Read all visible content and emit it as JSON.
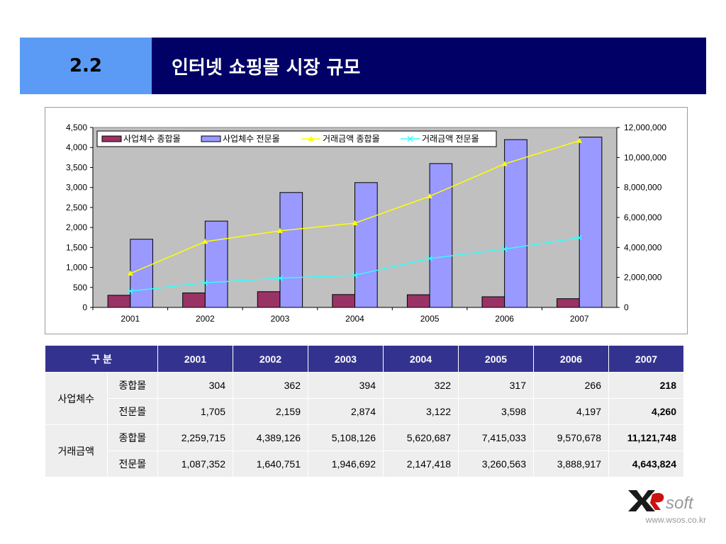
{
  "header": {
    "number": "2.2",
    "title": "인터넷 쇼핑몰 시장 규모"
  },
  "chart_data": {
    "type": "bar",
    "categories": [
      "2001",
      "2002",
      "2003",
      "2004",
      "2005",
      "2006",
      "2007"
    ],
    "series": [
      {
        "name": "사업체수 종합몰",
        "type": "bar",
        "axis": "left",
        "color": "#993366",
        "values": [
          304,
          362,
          394,
          322,
          317,
          266,
          218
        ]
      },
      {
        "name": "사업체수 전문몰",
        "type": "bar",
        "axis": "left",
        "color": "#9999ff",
        "values": [
          1705,
          2159,
          2874,
          3122,
          3598,
          4197,
          4260
        ]
      },
      {
        "name": "거래금액 종합몰",
        "type": "line",
        "axis": "right",
        "color": "#ffff00",
        "marker": "triangle",
        "values": [
          2259715,
          4389126,
          5108126,
          5620687,
          7415033,
          9570678,
          11121748
        ]
      },
      {
        "name": "거래금액 전문몰",
        "type": "line",
        "axis": "right",
        "color": "#33ffff",
        "marker": "x",
        "values": [
          1087352,
          1640751,
          1946692,
          2147418,
          3260563,
          3888917,
          4643824
        ]
      }
    ],
    "y_left": {
      "range": [
        0,
        4500
      ],
      "ticks": [
        "4,500",
        "4,000",
        "3,500",
        "3,000",
        "2,500",
        "2,000",
        "1,500",
        "1,000",
        "500",
        "0"
      ]
    },
    "y_right": {
      "range": [
        0,
        12000000
      ],
      "ticks": [
        "12,000,000",
        "10,000,000",
        "8,000,000",
        "6,000,000",
        "4,000,000",
        "2,000,000",
        "0"
      ]
    },
    "plot_background": "#c0c0c0",
    "legend_position": "top"
  },
  "table": {
    "corner": "구 분",
    "years": [
      "2001",
      "2002",
      "2003",
      "2004",
      "2005",
      "2006",
      "2007"
    ],
    "groups": [
      {
        "label": "사업체수",
        "rows": [
          {
            "label": "종합몰",
            "values": [
              "304",
              "362",
              "394",
              "322",
              "317",
              "266",
              "218"
            ]
          },
          {
            "label": "전문몰",
            "values": [
              "1,705",
              "2,159",
              "2,874",
              "3,122",
              "3,598",
              "4,197",
              "4,260"
            ]
          }
        ]
      },
      {
        "label": "거래금액",
        "rows": [
          {
            "label": "종합몰",
            "values": [
              "2,259,715",
              "4,389,126",
              "5,108,126",
              "5,620,687",
              "7,415,033",
              "9,570,678",
              "11,121,748"
            ]
          },
          {
            "label": "전문몰",
            "values": [
              "1,087,352",
              "1,640,751",
              "1,946,692",
              "2,147,418",
              "3,260,563",
              "3,888,917",
              "4,643,824"
            ]
          }
        ]
      }
    ]
  },
  "footer": {
    "logo_text": "soft",
    "url": "www.wsos.co.kr"
  }
}
